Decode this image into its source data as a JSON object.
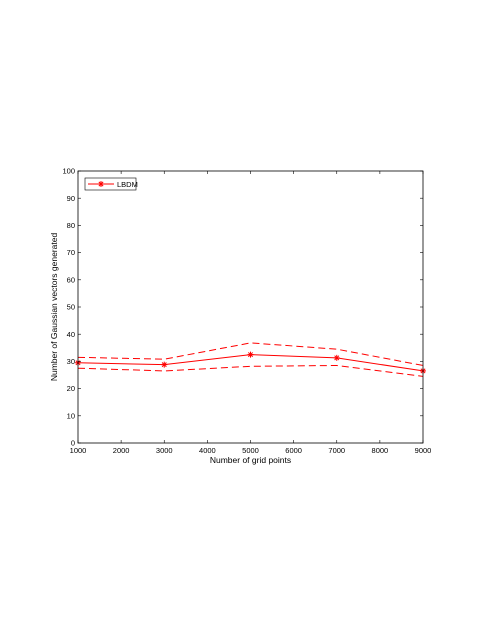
{
  "chart_data": {
    "type": "line",
    "xlabel": "Number of grid points",
    "ylabel": "Number of Gaussian vectors generated",
    "xlim": [
      1000,
      9000
    ],
    "ylim": [
      0,
      100
    ],
    "xticks": [
      "1000",
      "2000",
      "3000",
      "4000",
      "5000",
      "6000",
      "7000",
      "8000",
      "9000"
    ],
    "yticks": [
      "0",
      "10",
      "20",
      "30",
      "40",
      "50",
      "60",
      "70",
      "80",
      "90",
      "100"
    ],
    "x": [
      1000,
      3000,
      5000,
      7000,
      9000
    ],
    "series": [
      {
        "name": "LBDM",
        "values": [
          29.5,
          28.8,
          32.5,
          31.3,
          26.5
        ],
        "color": "#ff0000",
        "style": "solid",
        "marker": "asterisk"
      },
      {
        "name": "",
        "values": [
          31.5,
          30.8,
          36.8,
          34.5,
          28.5
        ],
        "color": "#ff0000",
        "style": "dashed"
      },
      {
        "name": "",
        "values": [
          27.5,
          26.5,
          28.2,
          28.5,
          24.5
        ],
        "color": "#ff0000",
        "style": "dashed"
      }
    ],
    "legend": {
      "position": "top-left",
      "entries": [
        "LBDM"
      ]
    },
    "grid": false
  }
}
